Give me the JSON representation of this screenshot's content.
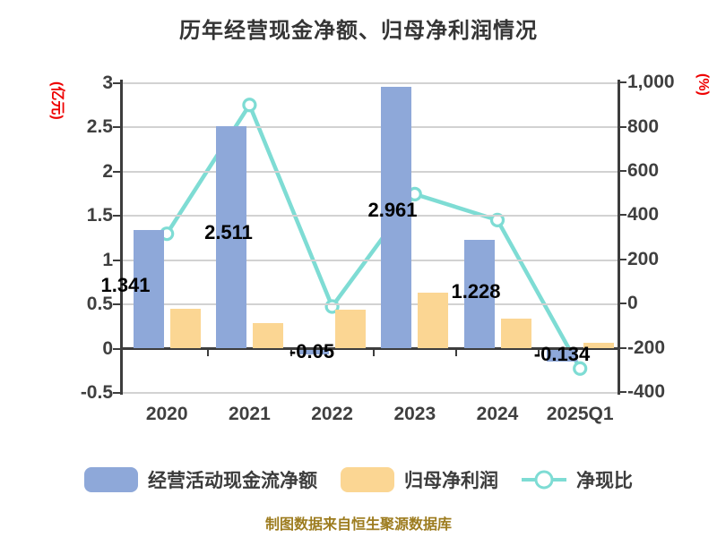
{
  "title": "历年经营现金净额、归母净利润情况",
  "footer": "制图数据来自恒生聚源数据库",
  "colors": {
    "cash_bar": "#8ea8d9",
    "profit_bar": "#fbd693",
    "ratio_line": "#7edcd4",
    "axis": "#3d3d3d",
    "grid": "#d2d2d2",
    "axis_unit_label": "#ee0000",
    "value_label": "#000000",
    "footer_text": "#9d7c1f"
  },
  "chart_data": {
    "type": "bar",
    "subtype": "grouped bars + line on secondary axis",
    "title": "历年经营现金净额、归母净利润情况",
    "categories": [
      "2020",
      "2021",
      "2022",
      "2023",
      "2024",
      "2025Q1"
    ],
    "series": [
      {
        "name": "经营活动现金流净额",
        "type": "bar",
        "axis": "left",
        "values": [
          1.341,
          2.511,
          -0.05,
          2.961,
          1.228,
          -0.134
        ],
        "labels": [
          "1.341",
          "2.511",
          "-0.05",
          "2.961",
          "1.228",
          "-0.134"
        ]
      },
      {
        "name": "归母净利润",
        "type": "bar",
        "axis": "left",
        "values": [
          0.45,
          0.29,
          0.44,
          0.63,
          0.34,
          0.07
        ]
      },
      {
        "name": "净现比",
        "type": "line",
        "axis": "right",
        "values": [
          316,
          898,
          -13,
          495,
          378,
          -293
        ]
      }
    ],
    "left_axis": {
      "label": "(亿元)",
      "ticks": [
        "3",
        "2.5",
        "2",
        "1.5",
        "1",
        "0.5",
        "0",
        "-0.5"
      ],
      "tick_values": [
        3,
        2.5,
        2,
        1.5,
        1,
        0.5,
        0,
        -0.5
      ],
      "range": [
        -0.5,
        3
      ]
    },
    "right_axis": {
      "label": "(%)",
      "ticks": [
        "1,000",
        "800",
        "600",
        "400",
        "200",
        "0",
        "-200",
        "-400"
      ],
      "tick_values": [
        1000,
        800,
        600,
        400,
        200,
        0,
        -200,
        -400
      ],
      "range": [
        -400,
        1000
      ]
    },
    "grid": true,
    "legend_position": "bottom"
  },
  "legend": {
    "items": [
      {
        "label": "经营活动现金流净额",
        "swatch": "blue-bar"
      },
      {
        "label": "归母净利润",
        "swatch": "yellow-bar"
      },
      {
        "label": "净现比",
        "swatch": "teal-line-marker"
      }
    ]
  }
}
